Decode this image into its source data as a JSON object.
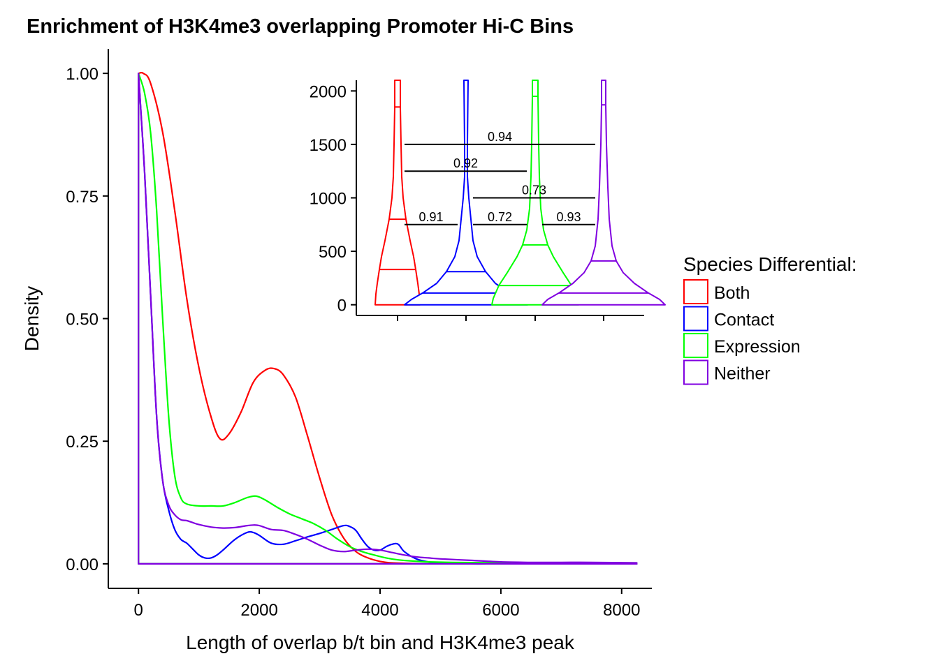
{
  "chart_data": [
    {
      "type": "line",
      "title": "Enrichment of H3K4me3 overlapping Promoter Hi-C Bins",
      "xlabel": "Length of overlap b/t bin and H3K4me3 peak",
      "ylabel": "Density",
      "xlim": [
        -500,
        8500
      ],
      "ylim": [
        -0.05,
        1.05
      ],
      "x_ticks": [
        "0",
        "2000",
        "4000",
        "6000",
        "8000"
      ],
      "y_ticks": [
        "0.00",
        "0.25",
        "0.50",
        "0.75",
        "1.00"
      ],
      "grid": false,
      "legend": {
        "title": "Species Differential:",
        "position": "right",
        "items": [
          "Both",
          "Contact",
          "Expression",
          "Neither"
        ]
      },
      "series": [
        {
          "name": "Both",
          "color": "#ff0000",
          "x": [
            0,
            80,
            200,
            400,
            600,
            800,
            1000,
            1200,
            1350,
            1500,
            1700,
            1900,
            2100,
            2250,
            2400,
            2600,
            2800,
            3000,
            3200,
            3400,
            3600,
            3800,
            4000,
            4200,
            4500,
            4800,
            5200,
            6000,
            7000,
            8250
          ],
          "y": [
            1.0,
            1.0,
            0.98,
            0.88,
            0.72,
            0.54,
            0.4,
            0.3,
            0.255,
            0.265,
            0.31,
            0.37,
            0.395,
            0.398,
            0.385,
            0.34,
            0.26,
            0.175,
            0.1,
            0.052,
            0.025,
            0.012,
            0.005,
            0.002,
            0.001,
            0.0,
            0.0,
            0.0,
            0.0,
            0.0
          ]
        },
        {
          "name": "Contact",
          "color": "#0000ff",
          "x": [
            0,
            100,
            200,
            300,
            400,
            500,
            600,
            700,
            800,
            900,
            1000,
            1100,
            1200,
            1300,
            1400,
            1600,
            1800,
            1900,
            2000,
            2200,
            2400,
            2600,
            2800,
            3000,
            3200,
            3400,
            3500,
            3600,
            3700,
            3800,
            3900,
            4000,
            4100,
            4200,
            4300,
            4400,
            4600,
            4800,
            5000,
            5500,
            6000,
            7000,
            8250
          ],
          "y": [
            1.0,
            0.8,
            0.55,
            0.3,
            0.17,
            0.11,
            0.07,
            0.05,
            0.042,
            0.03,
            0.018,
            0.012,
            0.012,
            0.018,
            0.028,
            0.05,
            0.064,
            0.064,
            0.058,
            0.042,
            0.04,
            0.047,
            0.055,
            0.062,
            0.07,
            0.078,
            0.076,
            0.068,
            0.05,
            0.035,
            0.028,
            0.028,
            0.035,
            0.04,
            0.04,
            0.025,
            0.01,
            0.004,
            0.002,
            0.0,
            0.0,
            0.0,
            0.0
          ]
        },
        {
          "name": "Expression",
          "color": "#00ff00",
          "x": [
            0,
            100,
            200,
            300,
            400,
            500,
            600,
            700,
            800,
            1000,
            1200,
            1400,
            1600,
            1800,
            1950,
            2100,
            2300,
            2500,
            2700,
            2900,
            3100,
            3300,
            3500,
            3700,
            3900,
            4100,
            4300,
            4500,
            4800,
            5200,
            6000,
            7000,
            8250
          ],
          "y": [
            1.0,
            0.96,
            0.88,
            0.72,
            0.5,
            0.3,
            0.18,
            0.135,
            0.122,
            0.118,
            0.118,
            0.118,
            0.125,
            0.135,
            0.138,
            0.13,
            0.115,
            0.102,
            0.092,
            0.082,
            0.068,
            0.05,
            0.035,
            0.025,
            0.018,
            0.012,
            0.008,
            0.006,
            0.004,
            0.003,
            0.002,
            0.002,
            0.002
          ]
        },
        {
          "name": "Neither",
          "color": "#8000e0",
          "x": [
            0,
            100,
            200,
            300,
            400,
            500,
            600,
            700,
            800,
            900,
            1000,
            1200,
            1400,
            1600,
            1800,
            1900,
            2000,
            2200,
            2400,
            2600,
            2800,
            3000,
            3200,
            3400,
            3600,
            3800,
            4000,
            4200,
            4400,
            4600,
            4800,
            5000,
            5500,
            6000,
            6500,
            7000,
            7500,
            8250
          ],
          "y": [
            1.0,
            0.8,
            0.55,
            0.3,
            0.17,
            0.12,
            0.1,
            0.09,
            0.088,
            0.084,
            0.08,
            0.075,
            0.073,
            0.074,
            0.078,
            0.079,
            0.078,
            0.07,
            0.068,
            0.06,
            0.05,
            0.038,
            0.028,
            0.025,
            0.028,
            0.03,
            0.028,
            0.023,
            0.018,
            0.014,
            0.012,
            0.01,
            0.007,
            0.004,
            0.003,
            0.003,
            0.003,
            0.002
          ]
        }
      ]
    },
    {
      "type": "violin",
      "ylim": [
        -100,
        2100
      ],
      "y_ticks": [
        "0",
        "500",
        "1000",
        "1500",
        "2000"
      ],
      "groups": [
        {
          "name": "Both",
          "color": "#ff0000",
          "quantiles": [
            330,
            800,
            1850
          ],
          "profile": [
            [
              0,
              32
            ],
            [
              100,
              31
            ],
            [
              200,
              29
            ],
            [
              330,
              26
            ],
            [
              450,
              23
            ],
            [
              600,
              18
            ],
            [
              800,
              12
            ],
            [
              1000,
              8
            ],
            [
              1200,
              6
            ],
            [
              1500,
              5
            ],
            [
              1850,
              4
            ],
            [
              2100,
              4
            ]
          ]
        },
        {
          "name": "Contact",
          "color": "#0000ff",
          "quantiles": [
            110,
            310
          ],
          "profile": [
            [
              0,
              88
            ],
            [
              50,
              78
            ],
            [
              110,
              62
            ],
            [
              200,
              42
            ],
            [
              310,
              28
            ],
            [
              450,
              16
            ],
            [
              600,
              10
            ],
            [
              800,
              7
            ],
            [
              1000,
              4
            ],
            [
              1200,
              2
            ],
            [
              1500,
              2
            ],
            [
              2100,
              3
            ]
          ]
        },
        {
          "name": "Expression",
          "color": "#00ff00",
          "quantiles": [
            180,
            560,
            1950
          ],
          "profile": [
            [
              0,
              62
            ],
            [
              60,
              60
            ],
            [
              180,
              52
            ],
            [
              300,
              40
            ],
            [
              450,
              26
            ],
            [
              560,
              18
            ],
            [
              700,
              12
            ],
            [
              900,
              8
            ],
            [
              1200,
              6
            ],
            [
              1500,
              5
            ],
            [
              1950,
              4
            ],
            [
              2100,
              4
            ]
          ]
        },
        {
          "name": "Neither",
          "color": "#8000e0",
          "quantiles": [
            110,
            410,
            1870
          ],
          "profile": [
            [
              0,
              88
            ],
            [
              50,
              80
            ],
            [
              110,
              64
            ],
            [
              200,
              44
            ],
            [
              300,
              28
            ],
            [
              410,
              18
            ],
            [
              550,
              12
            ],
            [
              800,
              8
            ],
            [
              1100,
              6
            ],
            [
              1500,
              4
            ],
            [
              1870,
              3
            ],
            [
              2100,
              3
            ]
          ]
        }
      ],
      "pvalues": [
        {
          "label": "0.94",
          "from": "Both",
          "to": "Neither",
          "y": 1500
        },
        {
          "label": "0.92",
          "from": "Both",
          "to": "Expression",
          "y": 1250
        },
        {
          "label": "0.73",
          "from": "Contact",
          "to": "Neither",
          "y": 1000
        },
        {
          "label": "0.91",
          "from": "Both",
          "to": "Contact",
          "y": 750
        },
        {
          "label": "0.72",
          "from": "Contact",
          "to": "Expression",
          "y": 750
        },
        {
          "label": "0.93",
          "from": "Expression",
          "to": "Neither",
          "y": 750
        }
      ]
    }
  ]
}
